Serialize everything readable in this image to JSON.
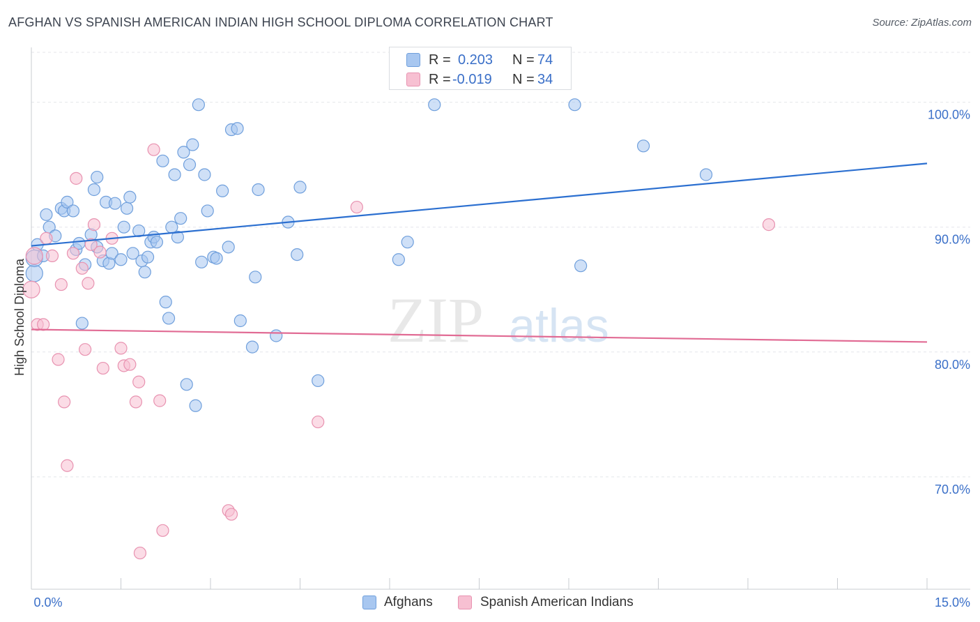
{
  "title": "AFGHAN VS SPANISH AMERICAN INDIAN HIGH SCHOOL DIPLOMA CORRELATION CHART",
  "source": "Source: ZipAtlas.com",
  "watermark": {
    "zip": "ZIP",
    "atlas": "atlas"
  },
  "stats_legend": {
    "rows": [
      {
        "r_label": "R =",
        "r_value": "0.203",
        "n_label": "N =",
        "n_value": "74",
        "color": "#a8c7f0",
        "border": "#6f9fdc"
      },
      {
        "r_label": "R =",
        "r_value": "-0.019",
        "n_label": "N =",
        "n_value": "34",
        "color": "#f7c0d2",
        "border": "#e892b0"
      }
    ]
  },
  "bottom_legend": [
    {
      "label": "Afghans",
      "color": "#a8c7f0",
      "border": "#6f9fdc"
    },
    {
      "label": "Spanish American Indians",
      "color": "#f7c0d2",
      "border": "#e892b0"
    }
  ],
  "chart_data": {
    "type": "scatter",
    "title": "AFGHAN VS SPANISH AMERICAN INDIAN HIGH SCHOOL DIPLOMA CORRELATION CHART",
    "xlabel": "",
    "ylabel": "High School Diploma",
    "xlim": [
      0,
      15
    ],
    "ylim": [
      61,
      104
    ],
    "x_tick_labels": [
      "0.0%",
      "15.0%"
    ],
    "y_ticks": [
      70,
      80,
      90,
      100
    ],
    "y_tick_labels": [
      "70.0%",
      "80.0%",
      "90.0%",
      "100.0%"
    ],
    "grid": true,
    "series": [
      {
        "name": "Afghans",
        "color": "#a8c7f0",
        "edge": "#6f9fdc",
        "trend_color": "#2b6fd0",
        "trend": {
          "x": [
            0,
            15
          ],
          "y": [
            88.5,
            95.1
          ]
        },
        "points": [
          [
            0.1,
            88.6
          ],
          [
            0.25,
            91.0
          ],
          [
            0.3,
            90.0
          ],
          [
            0.4,
            89.3
          ],
          [
            0.5,
            91.5
          ],
          [
            0.55,
            91.3
          ],
          [
            0.6,
            92.0
          ],
          [
            0.7,
            91.3
          ],
          [
            0.75,
            88.2
          ],
          [
            0.8,
            88.7
          ],
          [
            0.85,
            82.3
          ],
          [
            0.9,
            87.0
          ],
          [
            1.0,
            89.4
          ],
          [
            1.05,
            93.0
          ],
          [
            1.1,
            94.0
          ],
          [
            1.2,
            87.3
          ],
          [
            1.25,
            92.0
          ],
          [
            1.3,
            87.1
          ],
          [
            1.35,
            87.9
          ],
          [
            1.4,
            91.9
          ],
          [
            1.5,
            87.4
          ],
          [
            1.55,
            90.0
          ],
          [
            1.6,
            91.5
          ],
          [
            1.65,
            92.4
          ],
          [
            1.7,
            87.9
          ],
          [
            1.8,
            89.7
          ],
          [
            1.85,
            87.3
          ],
          [
            1.9,
            86.4
          ],
          [
            1.95,
            87.6
          ],
          [
            2.0,
            88.8
          ],
          [
            2.05,
            89.2
          ],
          [
            2.1,
            88.8
          ],
          [
            2.2,
            95.3
          ],
          [
            2.25,
            84.0
          ],
          [
            2.3,
            82.7
          ],
          [
            2.35,
            90.0
          ],
          [
            2.4,
            94.2
          ],
          [
            2.45,
            89.2
          ],
          [
            2.5,
            90.7
          ],
          [
            2.55,
            96.0
          ],
          [
            2.6,
            77.4
          ],
          [
            2.65,
            95.0
          ],
          [
            2.7,
            96.6
          ],
          [
            2.75,
            75.7
          ],
          [
            2.8,
            99.8
          ],
          [
            2.85,
            87.2
          ],
          [
            2.9,
            94.2
          ],
          [
            2.95,
            91.3
          ],
          [
            3.05,
            87.6
          ],
          [
            3.1,
            87.5
          ],
          [
            3.2,
            92.9
          ],
          [
            3.3,
            88.4
          ],
          [
            3.35,
            97.8
          ],
          [
            3.45,
            97.9
          ],
          [
            3.5,
            82.5
          ],
          [
            3.7,
            80.4
          ],
          [
            3.75,
            86.0
          ],
          [
            3.8,
            93.0
          ],
          [
            4.1,
            81.3
          ],
          [
            4.3,
            90.4
          ],
          [
            4.45,
            87.8
          ],
          [
            4.5,
            93.2
          ],
          [
            4.8,
            77.7
          ],
          [
            6.15,
            87.4
          ],
          [
            6.3,
            88.8
          ],
          [
            6.75,
            99.8
          ],
          [
            9.2,
            86.9
          ],
          [
            10.25,
            96.5
          ],
          [
            11.3,
            94.2
          ],
          [
            9.1,
            99.8
          ],
          [
            0.05,
            86.3
          ],
          [
            0.05,
            87.5
          ],
          [
            1.1,
            88.4
          ],
          [
            0.2,
            87.7
          ]
        ]
      },
      {
        "name": "Spanish American Indians",
        "color": "#f7c0d2",
        "edge": "#e892b0",
        "trend_color": "#e16b94",
        "trend": {
          "x": [
            0,
            15
          ],
          "y": [
            81.8,
            80.8
          ]
        },
        "points": [
          [
            0.0,
            85.0
          ],
          [
            0.05,
            87.7
          ],
          [
            0.1,
            82.2
          ],
          [
            0.2,
            82.2
          ],
          [
            0.25,
            89.1
          ],
          [
            0.35,
            87.7
          ],
          [
            0.45,
            79.4
          ],
          [
            0.5,
            85.4
          ],
          [
            0.55,
            76.0
          ],
          [
            0.6,
            70.9
          ],
          [
            0.7,
            87.9
          ],
          [
            0.75,
            93.9
          ],
          [
            0.85,
            86.7
          ],
          [
            0.9,
            80.2
          ],
          [
            0.95,
            85.5
          ],
          [
            1.0,
            88.6
          ],
          [
            1.05,
            90.2
          ],
          [
            1.15,
            88.0
          ],
          [
            1.2,
            78.7
          ],
          [
            1.35,
            89.1
          ],
          [
            1.5,
            80.3
          ],
          [
            1.55,
            78.9
          ],
          [
            1.65,
            79.0
          ],
          [
            1.75,
            76.0
          ],
          [
            1.8,
            77.6
          ],
          [
            1.82,
            63.9
          ],
          [
            2.05,
            96.2
          ],
          [
            2.15,
            76.1
          ],
          [
            2.2,
            65.7
          ],
          [
            3.3,
            67.3
          ],
          [
            3.35,
            67.0
          ],
          [
            4.8,
            74.4
          ],
          [
            5.45,
            91.6
          ],
          [
            12.35,
            90.2
          ]
        ]
      }
    ]
  }
}
